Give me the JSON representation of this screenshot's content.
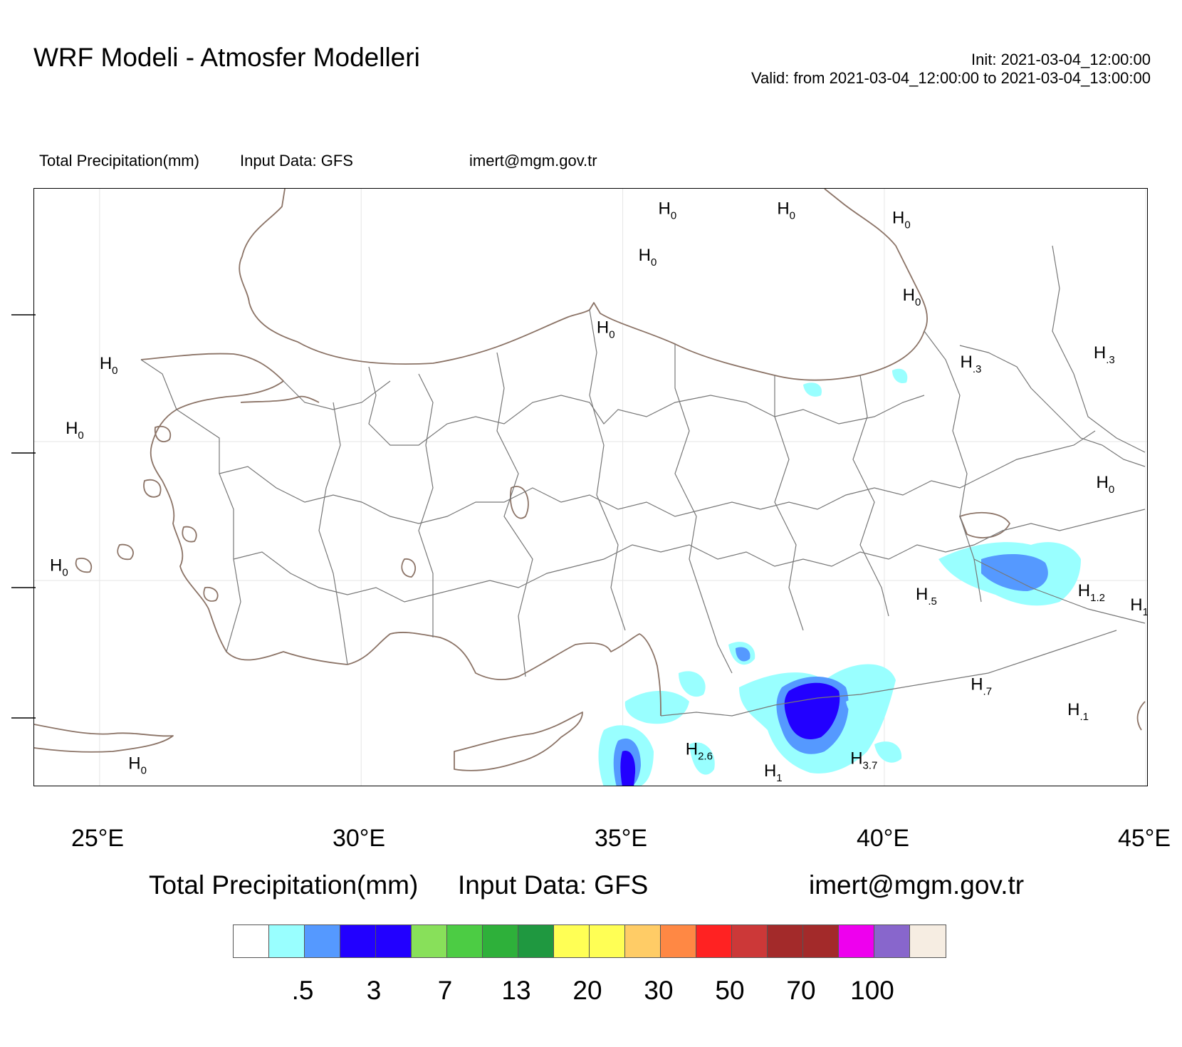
{
  "header": {
    "title": "WRF Modeli - Atmosfer Modelleri",
    "init": "Init: 2021-03-04_12:00:00",
    "valid": "Valid: from 2021-03-04_12:00:00 to 2021-03-04_13:00:00"
  },
  "subtitle": {
    "field": "Total Precipitation(mm)",
    "input": "Input Data: GFS",
    "email": "imert@mgm.gov.tr"
  },
  "map": {
    "lon_labels": [
      "25°E",
      "30°E",
      "35°E",
      "40°E",
      "45°E"
    ],
    "extent": {
      "lon_min": 23.75,
      "lon_max": 45.05,
      "lat_min": 35.0,
      "lat_max": 43.3
    },
    "coastline_color": "#8b7366",
    "border_color": "#777777",
    "grid_color": "#e6e6e6",
    "markers": [
      {
        "letter": "H",
        "value": "0",
        "lon": 35.68,
        "lat": 42.95
      },
      {
        "letter": "H",
        "value": "0",
        "lon": 37.95,
        "lat": 42.95
      },
      {
        "letter": "H",
        "value": "0",
        "lon": 40.15,
        "lat": 42.82
      },
      {
        "letter": "H",
        "value": "0",
        "lon": 35.3,
        "lat": 42.3
      },
      {
        "letter": "H",
        "value": "0",
        "lon": 40.35,
        "lat": 41.75
      },
      {
        "letter": "H",
        "value": "0",
        "lon": 34.5,
        "lat": 41.3
      },
      {
        "letter": "H",
        "value": "0",
        "lon": 25.0,
        "lat": 40.8
      },
      {
        "letter": "H",
        "value": ".3",
        "lon": 41.45,
        "lat": 40.82
      },
      {
        "letter": "H",
        "value": ".3",
        "lon": 44.0,
        "lat": 40.95
      },
      {
        "letter": "H",
        "value": "0",
        "lon": 24.35,
        "lat": 39.9
      },
      {
        "letter": "H",
        "value": "0",
        "lon": 44.05,
        "lat": 39.15
      },
      {
        "letter": "H",
        "value": "0",
        "lon": 24.05,
        "lat": 38.0
      },
      {
        "letter": "H",
        "value": ".5",
        "lon": 40.6,
        "lat": 37.6
      },
      {
        "letter": "H",
        "value": "1.2",
        "lon": 43.7,
        "lat": 37.65
      },
      {
        "letter": "H",
        "value": "1",
        "lon": 44.7,
        "lat": 37.45
      },
      {
        "letter": "H",
        "value": ".7",
        "lon": 41.65,
        "lat": 36.35
      },
      {
        "letter": "H",
        "value": ".1",
        "lon": 43.5,
        "lat": 36.0
      },
      {
        "letter": "H",
        "value": "2.6",
        "lon": 36.2,
        "lat": 35.45
      },
      {
        "letter": "H",
        "value": "3.7",
        "lon": 39.35,
        "lat": 35.32
      },
      {
        "letter": "H",
        "value": "1",
        "lon": 37.7,
        "lat": 35.15
      },
      {
        "letter": "H",
        "value": "0",
        "lon": 25.55,
        "lat": 35.25
      }
    ]
  },
  "colorbar": {
    "title": "Total Precipitation(mm)",
    "input": "Input Data: GFS",
    "email": "imert@mgm.gov.tr",
    "colors": [
      "#ffffff",
      "#99ffff",
      "#5599ff",
      "#2200ff",
      "#2200ff",
      "#88e05a",
      "#4ccc44",
      "#2eb03a",
      "#1f9840",
      "#ffff55",
      "#ffff55",
      "#ffcc66",
      "#ff8844",
      "#ff2222",
      "#cc3838",
      "#a32a2a",
      "#a32a2a",
      "#ee00ee",
      "#8866cc",
      "#f6ede2"
    ],
    "tick_labels": [
      ".5",
      "3",
      "7",
      "13",
      "20",
      "30",
      "50",
      "70",
      "100"
    ]
  },
  "precip": {
    "light": "#99ffff",
    "medium": "#5599ff",
    "heavy": "#2200ff"
  }
}
